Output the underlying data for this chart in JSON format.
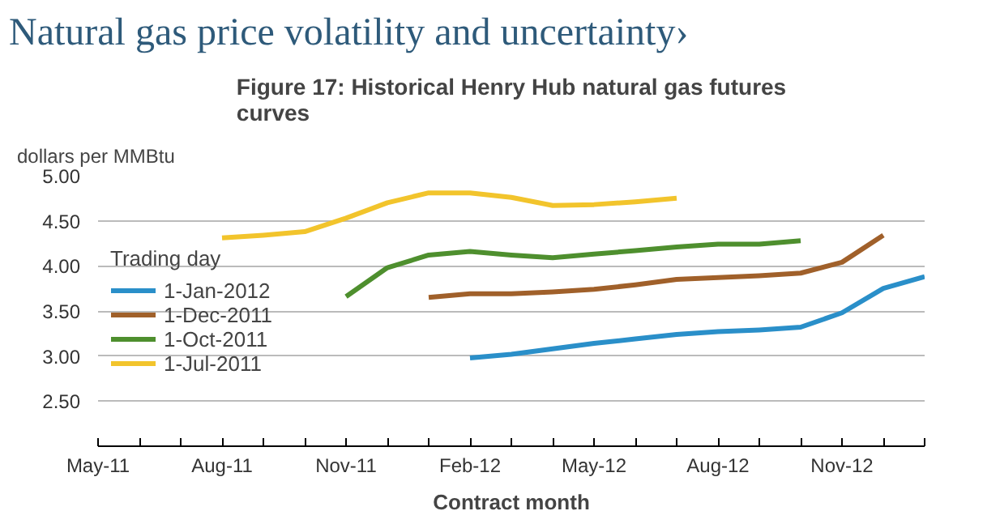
{
  "chart_data": {
    "type": "line",
    "title": "Natural gas price volatility and uncertainty›",
    "subtitle": "Figure 17: Historical Henry Hub natural gas futures curves",
    "ylabel": "dollars per MMBtu",
    "xlabel": "Contract month",
    "legend_title": "Trading day",
    "series": [
      {
        "name": "1-Jan-2012",
        "color": "#2a8fc9",
        "x": [
          "2012-02",
          "2012-03",
          "2012-04",
          "2012-05",
          "2012-06",
          "2012-07",
          "2012-08",
          "2012-09",
          "2012-10",
          "2012-11",
          "2012-12",
          "2013-01"
        ],
        "values": [
          2.98,
          3.02,
          3.08,
          3.14,
          3.19,
          3.24,
          3.27,
          3.29,
          3.32,
          3.48,
          3.75,
          3.88
        ]
      },
      {
        "name": "1-Dec-2011",
        "color": "#a0602a",
        "x": [
          "2012-01",
          "2012-02",
          "2012-03",
          "2012-04",
          "2012-05",
          "2012-06",
          "2012-07",
          "2012-08",
          "2012-09",
          "2012-10",
          "2012-11",
          "2012-12"
        ],
        "values": [
          3.65,
          3.69,
          3.69,
          3.71,
          3.74,
          3.79,
          3.85,
          3.87,
          3.89,
          3.92,
          4.04,
          4.34
        ]
      },
      {
        "name": "1-Oct-2011",
        "color": "#4e8f2e",
        "x": [
          "2011-11",
          "2011-12",
          "2012-01",
          "2012-02",
          "2012-03",
          "2012-04",
          "2012-05",
          "2012-06",
          "2012-07",
          "2012-08",
          "2012-09",
          "2012-10"
        ],
        "values": [
          3.66,
          3.98,
          4.12,
          4.16,
          4.12,
          4.09,
          4.13,
          4.17,
          4.21,
          4.24,
          4.24,
          4.28
        ]
      },
      {
        "name": "1-Jul-2011",
        "color": "#f2c42c",
        "x": [
          "2011-08",
          "2011-09",
          "2011-10",
          "2011-11",
          "2011-12",
          "2012-01",
          "2012-02",
          "2012-03",
          "2012-04",
          "2012-05",
          "2012-06",
          "2012-07"
        ],
        "values": [
          4.31,
          4.34,
          4.38,
          4.53,
          4.7,
          4.81,
          4.81,
          4.76,
          4.67,
          4.68,
          4.71,
          4.75
        ]
      }
    ],
    "xlim": [
      "2011-05",
      "2013-01"
    ],
    "xticks": [
      {
        "value": "2011-05",
        "label": "May-11"
      },
      {
        "value": "2011-06",
        "label": null
      },
      {
        "value": "2011-07",
        "label": null
      },
      {
        "value": "2011-08",
        "label": "Aug-11"
      },
      {
        "value": "2011-09",
        "label": null
      },
      {
        "value": "2011-10",
        "label": null
      },
      {
        "value": "2011-11",
        "label": "Nov-11"
      },
      {
        "value": "2011-12",
        "label": null
      },
      {
        "value": "2012-01",
        "label": null
      },
      {
        "value": "2012-02",
        "label": "Feb-12"
      },
      {
        "value": "2012-03",
        "label": null
      },
      {
        "value": "2012-04",
        "label": null
      },
      {
        "value": "2012-05",
        "label": "May-12"
      },
      {
        "value": "2012-06",
        "label": null
      },
      {
        "value": "2012-07",
        "label": null
      },
      {
        "value": "2012-08",
        "label": "Aug-12"
      },
      {
        "value": "2012-09",
        "label": null
      },
      {
        "value": "2012-10",
        "label": null
      },
      {
        "value": "2012-11",
        "label": "Nov-12"
      },
      {
        "value": "2012-12",
        "label": null
      },
      {
        "value": "2013-01",
        "label": null
      }
    ],
    "ylim": [
      2.0,
      5.0
    ],
    "yticks": [
      {
        "value": 2.5,
        "label": "2.50"
      },
      {
        "value": 3.0,
        "label": "3.00"
      },
      {
        "value": 3.5,
        "label": "3.50"
      },
      {
        "value": 4.0,
        "label": "4.00"
      },
      {
        "value": 4.5,
        "label": "4.50"
      },
      {
        "value": 5.0,
        "label": "5.00"
      }
    ],
    "grid": "y",
    "legend": "left",
    "marker": "none",
    "line_style": "solid"
  }
}
